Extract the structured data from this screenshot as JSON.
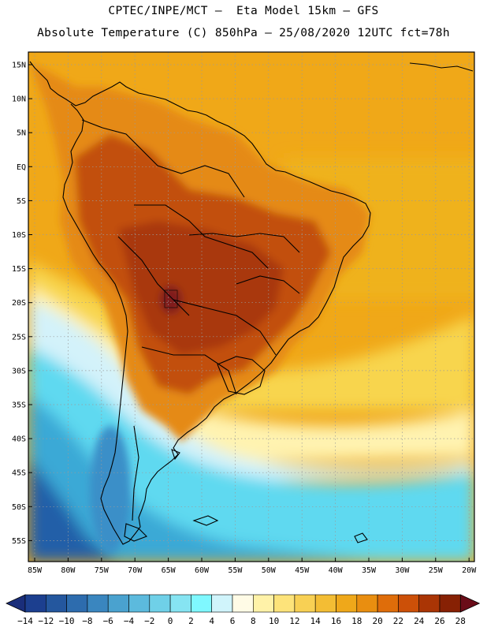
{
  "header": {
    "line1": "CPTEC/INPE/MCT –  Eta Model 15km – GFS",
    "line2": "Absolute Temperature (C) 850hPa – 25/08/2020 12UTC fct=78h"
  },
  "axes": {
    "lat_labels": [
      "15N",
      "10N",
      "5N",
      "EQ",
      "5S",
      "10S",
      "15S",
      "20S",
      "25S",
      "30S",
      "35S",
      "40S",
      "45S",
      "50S",
      "55S"
    ],
    "lon_labels": [
      "85W",
      "80W",
      "75W",
      "70W",
      "65W",
      "60W",
      "55W",
      "50W",
      "45W",
      "40W",
      "35W",
      "30W",
      "25W",
      "20W"
    ]
  },
  "colorbar": {
    "labels": [
      "-14",
      "-12",
      "-10",
      "-8",
      "-6",
      "-4",
      "-2",
      "0",
      "2",
      "4",
      "6",
      "8",
      "10",
      "12",
      "14",
      "16",
      "18",
      "20",
      "22",
      "24",
      "26",
      "28"
    ],
    "colors": [
      "#1c3f8f",
      "#24579e",
      "#2d6cae",
      "#3a86bf",
      "#4aa2cf",
      "#5cbadd",
      "#6fd0e8",
      "#86e4f2",
      "#7ff8ff",
      "#d0f4fb",
      "#fffbe6",
      "#fff2a8",
      "#fde37a",
      "#f8d054",
      "#f3bd34",
      "#efa81a",
      "#e98e10",
      "#df6d0a",
      "#cc5008",
      "#aa3505",
      "#872104"
    ],
    "under_color": "#1a2e7a",
    "over_color": "#6a0c18"
  },
  "field": {
    "ocean_north": "#f0a818",
    "ocean_warm": "#efb21e",
    "band_cool": "#f8d54e",
    "band_pale": "#fff3b0",
    "band_icy": "#d3f2fa",
    "ocean_cyan": "#5fd9f0",
    "ocean_mid": "#3aa9d6",
    "ocean_deep": "#245ea8",
    "land_hot": "#c2500b",
    "land_hotter": "#a9380a",
    "land_core": "#7f1c1c",
    "land_warm": "#e58a12",
    "coast_cold": "#3a8fc8"
  }
}
